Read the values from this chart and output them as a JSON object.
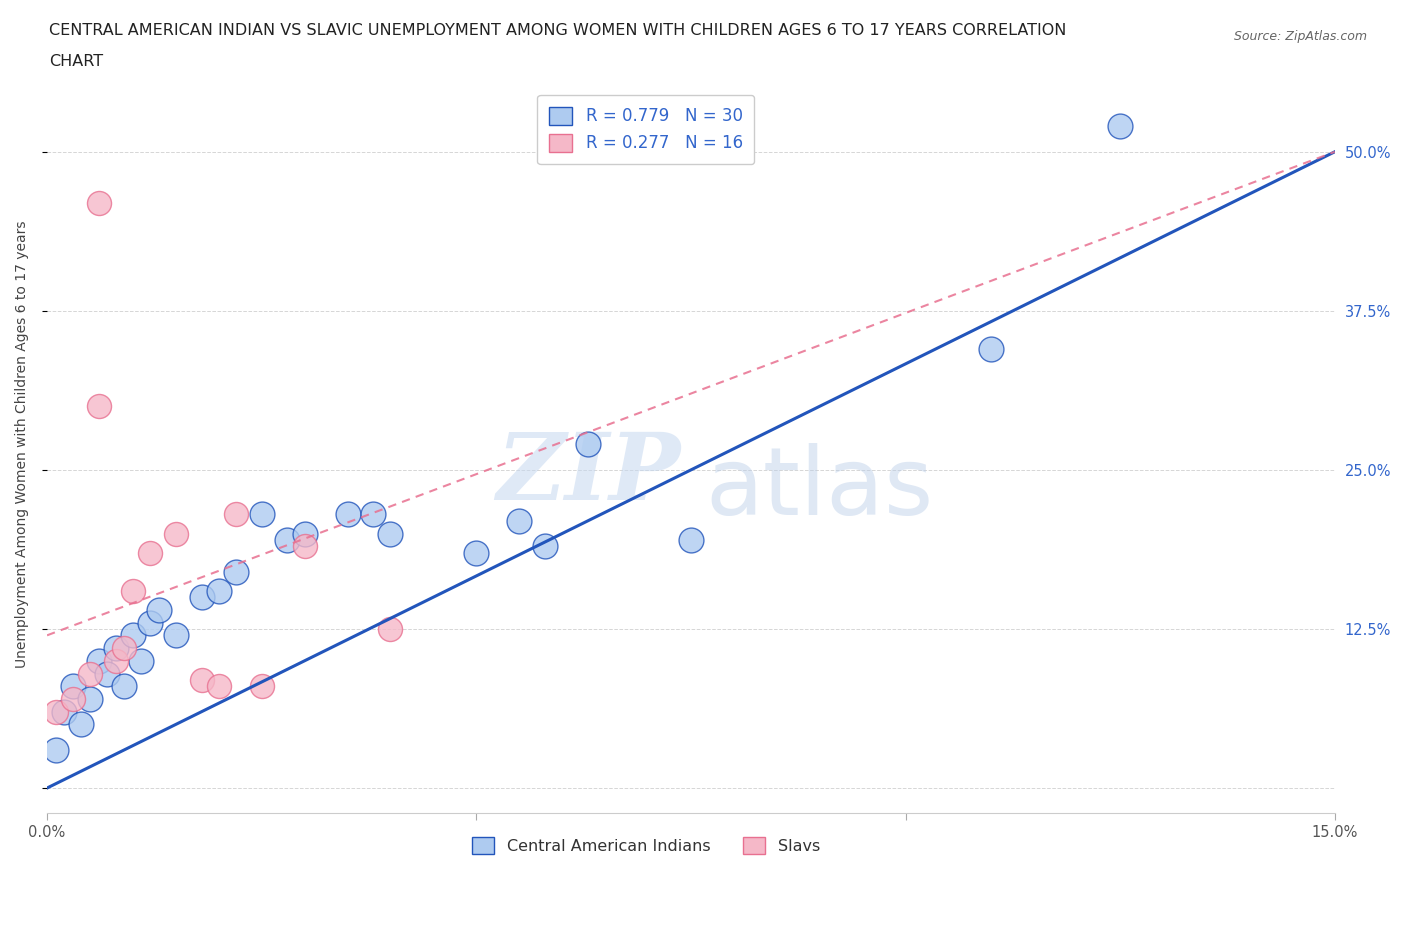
{
  "title_line1": "CENTRAL AMERICAN INDIAN VS SLAVIC UNEMPLOYMENT AMONG WOMEN WITH CHILDREN AGES 6 TO 17 YEARS CORRELATION",
  "title_line2": "CHART",
  "source": "Source: ZipAtlas.com",
  "ylabel": "Unemployment Among Women with Children Ages 6 to 17 years",
  "xlim": [
    0.0,
    0.15
  ],
  "ylim": [
    -0.02,
    0.56
  ],
  "ytick_positions": [
    0.0,
    0.125,
    0.25,
    0.375,
    0.5
  ],
  "ytick_labels": [
    "",
    "12.5%",
    "25.0%",
    "37.5%",
    "50.0%"
  ],
  "blue_color": "#aecbf0",
  "pink_color": "#f5b8c8",
  "blue_line_color": "#2255bb",
  "pink_line_color": "#e87090",
  "watermark_zip": "ZIP",
  "watermark_atlas": "atlas",
  "grid_color": "#cccccc",
  "background_color": "#ffffff",
  "title_fontsize": 11.5,
  "axis_label_fontsize": 10,
  "tick_fontsize": 10.5,
  "blue_scatter_x": [
    0.001,
    0.002,
    0.003,
    0.004,
    0.005,
    0.006,
    0.007,
    0.008,
    0.009,
    0.01,
    0.011,
    0.012,
    0.013,
    0.015,
    0.018,
    0.02,
    0.022,
    0.025,
    0.028,
    0.03,
    0.035,
    0.038,
    0.04,
    0.05,
    0.055,
    0.058,
    0.063,
    0.075,
    0.11,
    0.125
  ],
  "blue_scatter_y": [
    0.03,
    0.06,
    0.08,
    0.05,
    0.07,
    0.1,
    0.09,
    0.11,
    0.08,
    0.12,
    0.1,
    0.13,
    0.14,
    0.12,
    0.15,
    0.155,
    0.17,
    0.215,
    0.195,
    0.2,
    0.215,
    0.215,
    0.2,
    0.185,
    0.21,
    0.19,
    0.27,
    0.195,
    0.345,
    0.52
  ],
  "pink_scatter_x": [
    0.001,
    0.003,
    0.005,
    0.006,
    0.008,
    0.009,
    0.01,
    0.012,
    0.015,
    0.018,
    0.02,
    0.022,
    0.025,
    0.03,
    0.04,
    0.006
  ],
  "pink_scatter_y": [
    0.06,
    0.07,
    0.09,
    0.46,
    0.1,
    0.11,
    0.155,
    0.185,
    0.2,
    0.085,
    0.08,
    0.215,
    0.08,
    0.19,
    0.125,
    0.3
  ],
  "blue_line_x": [
    0.0,
    0.15
  ],
  "blue_line_y": [
    0.0,
    0.5
  ],
  "pink_line_x": [
    0.0,
    0.15
  ],
  "pink_line_y": [
    0.12,
    0.5
  ]
}
